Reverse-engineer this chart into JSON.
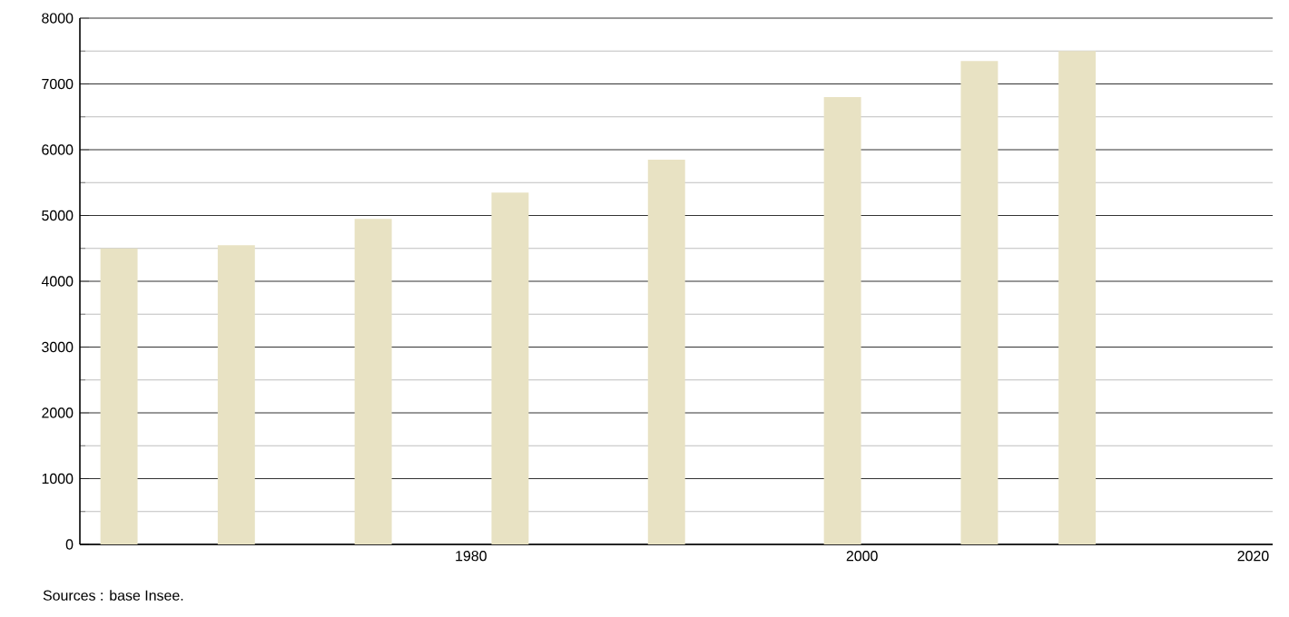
{
  "chart_data": {
    "type": "bar",
    "x": [
      1962,
      1968,
      1975,
      1982,
      1990,
      1999,
      2006,
      2011
    ],
    "values": [
      4500,
      4550,
      4950,
      5350,
      5850,
      6800,
      7350,
      7500
    ],
    "color": "#e8e2c3",
    "xlim": [
      1960,
      2021
    ],
    "xticks": [
      1980,
      2000,
      2020
    ],
    "ylim": [
      0,
      8000
    ],
    "yticks": [
      0,
      {
        "value": 500,
        "label": null
      },
      1000,
      {
        "value": 1500,
        "label": null
      },
      2000,
      {
        "value": 2500,
        "label": null
      },
      3000,
      {
        "value": 3500,
        "label": null
      },
      4000,
      {
        "value": 4500,
        "label": null
      },
      5000,
      {
        "value": 5500,
        "label": null
      },
      6000,
      {
        "value": 6500,
        "label": null
      },
      7000,
      {
        "value": 7500,
        "label": null
      },
      8000
    ],
    "grid": "y",
    "annotations": [
      "Sources : base Insee."
    ]
  }
}
